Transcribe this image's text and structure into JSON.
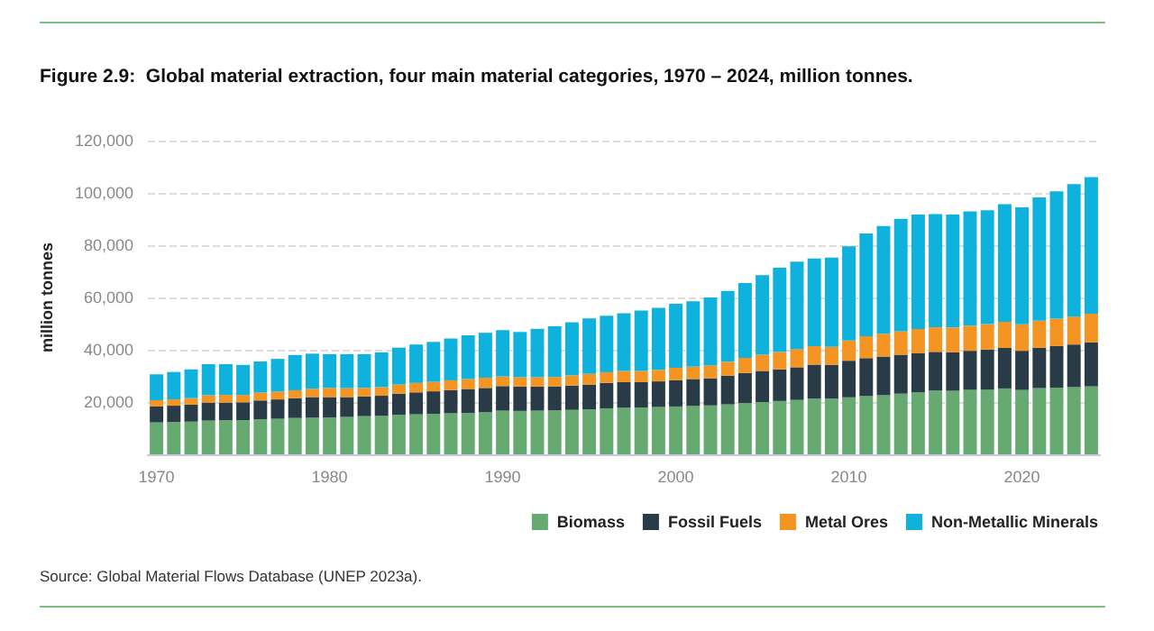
{
  "chart_data": {
    "type": "bar",
    "title": "Figure 2.9:  Global material extraction, four main material categories, 1970 – 2024, million tonnes.",
    "ylabel": "million tonnes",
    "annotations": [
      "Source: Global Material Flows Database (UNEP 2023a)."
    ],
    "categories": [
      "1970",
      null,
      null,
      null,
      null,
      null,
      null,
      null,
      null,
      null,
      "1980",
      null,
      null,
      null,
      null,
      null,
      null,
      null,
      null,
      null,
      "1990",
      null,
      null,
      null,
      null,
      null,
      null,
      null,
      null,
      null,
      "2000",
      null,
      null,
      null,
      null,
      null,
      null,
      null,
      null,
      null,
      "2010",
      null,
      null,
      null,
      null,
      null,
      null,
      null,
      null,
      null,
      "2020",
      null,
      null,
      null,
      null
    ],
    "stacked": true,
    "grid": "y",
    "legend": "bottom right",
    "ylim": [
      0,
      120000
    ],
    "yticks": [
      {
        "value": 0,
        "label": null
      },
      {
        "value": 20000,
        "label": "20,000"
      },
      {
        "value": 40000,
        "label": "40,000"
      },
      {
        "value": 60000,
        "label": "60,000"
      },
      {
        "value": 80000,
        "label": "80,000"
      },
      {
        "value": 100000,
        "label": "100,000"
      },
      {
        "value": 120000,
        "label": "120,000"
      }
    ],
    "series": [
      {
        "name": "Biomass",
        "color": "#66aa72",
        "values": [
          12200,
          12400,
          12500,
          12900,
          13000,
          13100,
          13400,
          13600,
          13900,
          14000,
          14100,
          14300,
          14600,
          14700,
          15100,
          15300,
          15500,
          15700,
          15800,
          16100,
          16700,
          16600,
          16700,
          16800,
          17000,
          17200,
          17600,
          17800,
          17900,
          18100,
          18300,
          18500,
          18700,
          19100,
          19600,
          20000,
          20400,
          20800,
          21300,
          21300,
          21800,
          22300,
          22600,
          23200,
          23700,
          24400,
          24300,
          24700,
          24800,
          25200,
          24600,
          25300,
          25500,
          25700,
          26000
        ]
      },
      {
        "name": "Fossil Fuels",
        "color": "#283b46",
        "values": [
          6100,
          6200,
          6500,
          6900,
          6800,
          6800,
          7200,
          7400,
          7600,
          7900,
          7800,
          7600,
          7600,
          7700,
          8100,
          8400,
          8600,
          8900,
          9200,
          9300,
          9400,
          9300,
          9200,
          9200,
          9300,
          9500,
          9700,
          9800,
          9700,
          9800,
          10100,
          10300,
          10400,
          11000,
          11500,
          11900,
          12100,
          12500,
          13000,
          12900,
          14000,
          14500,
          14800,
          14900,
          14900,
          14800,
          14700,
          14900,
          15300,
          15500,
          15000,
          15500,
          15900,
          16300,
          16800
        ]
      },
      {
        "name": "Metal Ores",
        "color": "#f39423",
        "values": [
          2400,
          2400,
          2500,
          2800,
          2900,
          2800,
          3000,
          3000,
          3000,
          3200,
          3500,
          3400,
          3200,
          3300,
          3500,
          3600,
          3600,
          3700,
          3800,
          3900,
          3700,
          3600,
          3600,
          3600,
          3900,
          4100,
          4100,
          4300,
          4300,
          4400,
          4700,
          4700,
          4900,
          5300,
          5800,
          6200,
          6600,
          7000,
          7100,
          6900,
          7700,
          8400,
          8700,
          9000,
          9300,
          9400,
          9500,
          9600,
          9700,
          10000,
          10100,
          10300,
          10500,
          10700,
          11000
        ]
      },
      {
        "name": "Non-Metallic Minerals",
        "color": "#0fb2dc",
        "values": [
          9900,
          10500,
          11000,
          11900,
          11800,
          11500,
          11900,
          12500,
          13500,
          13400,
          12900,
          13000,
          12900,
          13300,
          14100,
          14700,
          15300,
          16000,
          16700,
          17200,
          17700,
          17300,
          18500,
          19400,
          20300,
          21200,
          21600,
          22100,
          23100,
          23700,
          24500,
          25000,
          26000,
          27100,
          28600,
          30400,
          32300,
          33400,
          33500,
          34200,
          36100,
          39300,
          41200,
          43000,
          43800,
          43300,
          43200,
          43700,
          43600,
          45000,
          44800,
          47200,
          48700,
          50700,
          52200
        ]
      }
    ]
  }
}
